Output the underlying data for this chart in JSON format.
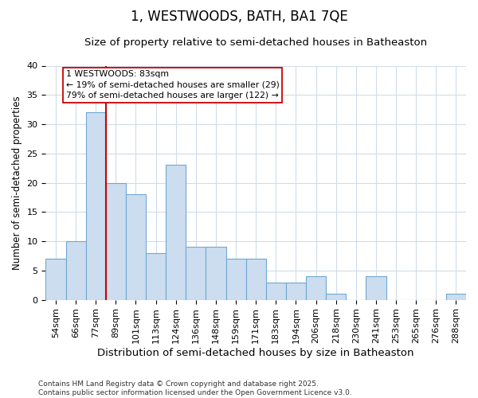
{
  "title": "1, WESTWOODS, BATH, BA1 7QE",
  "subtitle": "Size of property relative to semi-detached houses in Batheaston",
  "xlabel": "Distribution of semi-detached houses by size in Batheaston",
  "ylabel": "Number of semi-detached properties",
  "categories": [
    "54sqm",
    "66sqm",
    "77sqm",
    "89sqm",
    "101sqm",
    "113sqm",
    "124sqm",
    "136sqm",
    "148sqm",
    "159sqm",
    "171sqm",
    "183sqm",
    "194sqm",
    "206sqm",
    "218sqm",
    "230sqm",
    "241sqm",
    "253sqm",
    "265sqm",
    "276sqm",
    "288sqm"
  ],
  "values": [
    7,
    10,
    32,
    20,
    18,
    8,
    23,
    9,
    9,
    7,
    7,
    3,
    3,
    4,
    1,
    0,
    4,
    0,
    0,
    0,
    1
  ],
  "bar_color": "#ccddf0",
  "bar_edge_color": "#6fa8d0",
  "vline_x": 2.5,
  "vline_color": "#cc0000",
  "annotation_title": "1 WESTWOODS: 83sqm",
  "annotation_line2": "← 19% of semi-detached houses are smaller (29)",
  "annotation_line3": "79% of semi-detached houses are larger (122) →",
  "annotation_box_color": "#cc0000",
  "ylim": [
    0,
    40
  ],
  "footnote1": "Contains HM Land Registry data © Crown copyright and database right 2025.",
  "footnote2": "Contains public sector information licensed under the Open Government Licence v3.0.",
  "plot_bg_color": "#ffffff",
  "fig_bg_color": "#ffffff",
  "grid_color": "#d0dce8",
  "title_fontsize": 12,
  "subtitle_fontsize": 9.5,
  "xlabel_fontsize": 9.5,
  "ylabel_fontsize": 8.5,
  "tick_fontsize": 8,
  "footnote_fontsize": 6.5
}
